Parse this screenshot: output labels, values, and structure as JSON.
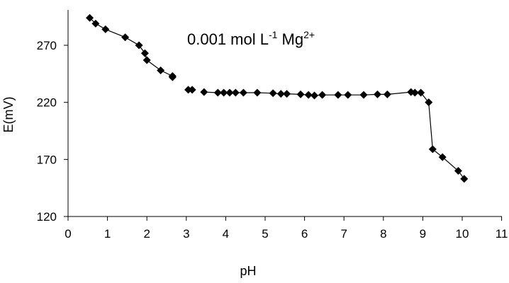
{
  "chart_data": {
    "type": "scatter",
    "xlabel": "pH",
    "ylabel": "E(mV)",
    "xlim": [
      0,
      11
    ],
    "ylim": [
      120,
      300
    ],
    "xticks": [
      0,
      1,
      2,
      3,
      4,
      5,
      6,
      7,
      8,
      9,
      10,
      11
    ],
    "yticks": [
      120,
      170,
      220,
      270
    ],
    "grid": false,
    "legend": "none",
    "marker": "diamond",
    "marker_color": "#000000",
    "line_color": "#000000",
    "annotation": {
      "text_main": "0.001 mol L",
      "superscript_1": "-1",
      "text_mid": " Mg",
      "superscript_2": "2+"
    },
    "series": [
      {
        "segments": [
          [
            [
              0.55,
              294
            ],
            [
              0.7,
              289
            ],
            [
              0.95,
              284
            ],
            [
              1.45,
              277
            ],
            [
              1.8,
              270
            ],
            [
              1.95,
              263
            ],
            [
              2.0,
              257
            ],
            [
              2.35,
              248
            ],
            [
              2.65,
              243
            ],
            [
              2.65,
              242
            ]
          ],
          [
            [
              3.05,
              231
            ],
            [
              3.15,
              231
            ]
          ],
          [
            [
              3.45,
              229
            ],
            [
              3.8,
              228.5
            ],
            [
              3.95,
              228.5
            ],
            [
              4.1,
              228.5
            ],
            [
              4.25,
              228.5
            ],
            [
              4.45,
              228.5
            ],
            [
              4.8,
              228.5
            ],
            [
              5.2,
              228
            ],
            [
              5.4,
              227.5
            ],
            [
              5.55,
              227.5
            ],
            [
              5.9,
              227
            ],
            [
              6.1,
              226.5
            ],
            [
              6.25,
              226
            ],
            [
              6.45,
              226.5
            ],
            [
              6.85,
              226.5
            ],
            [
              7.1,
              226.5
            ],
            [
              7.5,
              226.5
            ],
            [
              7.85,
              227
            ],
            [
              8.1,
              227
            ],
            [
              8.7,
              229
            ],
            [
              8.8,
              228.5
            ],
            [
              8.95,
              228.5
            ],
            [
              9.15,
              220
            ],
            [
              9.25,
              179
            ],
            [
              9.5,
              172
            ],
            [
              9.9,
              160
            ],
            [
              10.05,
              153
            ]
          ]
        ]
      }
    ]
  }
}
